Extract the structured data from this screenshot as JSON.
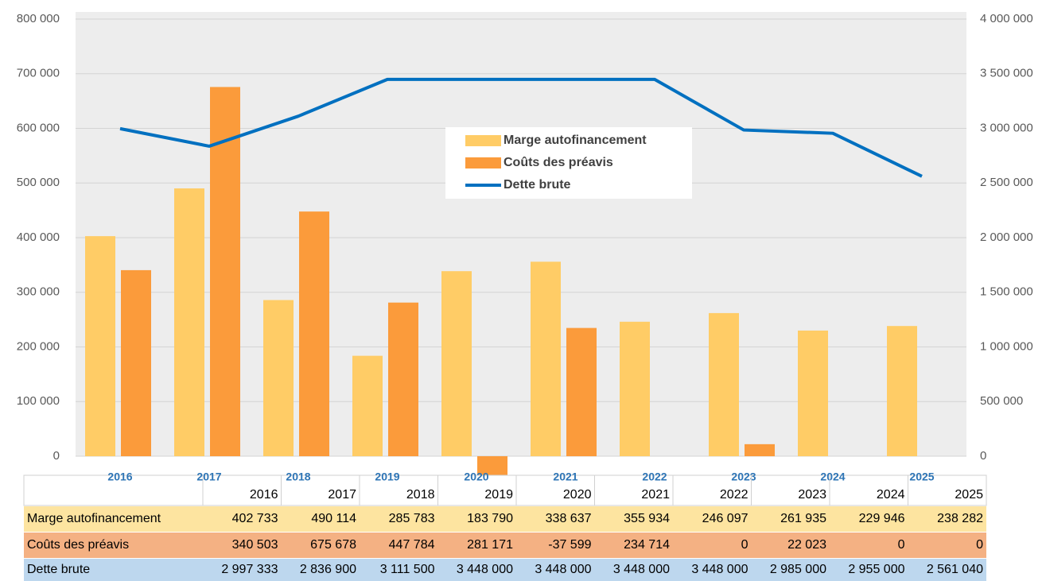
{
  "chart_data": {
    "type": "bar",
    "categories": [
      "2016",
      "2017",
      "2018",
      "2019",
      "2020",
      "2021",
      "2022",
      "2023",
      "2024",
      "2025"
    ],
    "series": [
      {
        "name": "Marge autofinancement",
        "color": "#ffcc66",
        "values": [
          402733,
          490114,
          285783,
          183790,
          338637,
          355934,
          246097,
          261935,
          229946,
          238282
        ],
        "value_labels": [
          "402 733",
          "490 114",
          "285 783",
          "183 790",
          "338 637",
          "355 934",
          "246 097",
          "261 935",
          "229 946",
          "238 282"
        ],
        "row_color": "#fde4a0"
      },
      {
        "name": "Coûts des préavis",
        "color": "#fb9b3b",
        "values": [
          340503,
          675678,
          447784,
          281171,
          -37599,
          234714,
          0,
          22023,
          0,
          0
        ],
        "value_labels": [
          "340 503",
          "675 678",
          "447 784",
          "281 171",
          "-37 599",
          "234 714",
          "0",
          "22 023",
          "0",
          "0"
        ],
        "row_color": "#f4b183"
      },
      {
        "name": "Dette brute",
        "color": "#0070c0",
        "type": "line",
        "axis": "y2",
        "values": [
          2997333,
          2836900,
          3111500,
          3448000,
          3448000,
          3448000,
          3448000,
          2985000,
          2955000,
          2561040
        ],
        "value_labels": [
          "2 997 333",
          "2 836 900",
          "3 111 500",
          "3 448 000",
          "3 448 000",
          "3 448 000",
          "3 448 000",
          "2 985 000",
          "2 955 000",
          "2 561 040"
        ],
        "row_color": "#bdd7ee"
      }
    ],
    "ylim": [
      0,
      800000
    ],
    "yticks": [
      {
        "value": 0,
        "label": "0"
      },
      {
        "value": 100000,
        "label": "100 000"
      },
      {
        "value": 200000,
        "label": "200 000"
      },
      {
        "value": 300000,
        "label": "300 000"
      },
      {
        "value": 400000,
        "label": "400 000"
      },
      {
        "value": 500000,
        "label": "500 000"
      },
      {
        "value": 600000,
        "label": "600 000"
      },
      {
        "value": 700000,
        "label": "700 000"
      },
      {
        "value": 800000,
        "label": "800 000"
      }
    ],
    "y2lim": [
      0,
      4000000
    ],
    "y2ticks": [
      {
        "value": 0,
        "label": "0"
      },
      {
        "value": 500000,
        "label": "500 000"
      },
      {
        "value": 1000000,
        "label": "1 000 000"
      },
      {
        "value": 1500000,
        "label": "1 500 000"
      },
      {
        "value": 2000000,
        "label": "2 000 000"
      },
      {
        "value": 2500000,
        "label": "2 500 000"
      },
      {
        "value": 3000000,
        "label": "3 000 000"
      },
      {
        "value": 3500000,
        "label": "3 500 000"
      },
      {
        "value": 4000000,
        "label": "4 000 000"
      }
    ],
    "grid": true,
    "legend": "center"
  }
}
